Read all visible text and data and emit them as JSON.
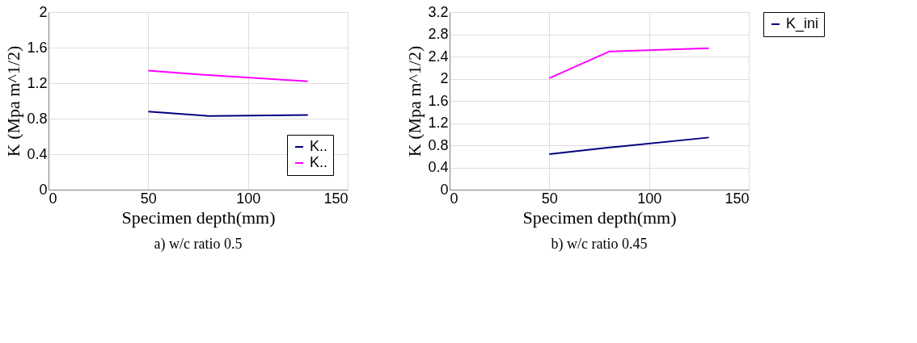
{
  "chart_data": [
    {
      "type": "line",
      "xlabel": "Specimen depth(mm)",
      "ylabel": "K (Mpa m^1/2)",
      "annotations": [
        "a)  w/c ratio 0.5"
      ],
      "xlim": [
        0,
        150
      ],
      "xticks": [
        0,
        50,
        100,
        150
      ],
      "ylim": [
        0,
        2
      ],
      "yticks": [
        0,
        0.4,
        0.8,
        1.2,
        1.6,
        2
      ],
      "grid": true,
      "legend": "bottom right",
      "marker": "none",
      "line_style": "solid",
      "series": [
        {
          "name": "K..",
          "color": "#000080",
          "x": [
            50,
            80,
            130
          ],
          "values": [
            0.88,
            0.83,
            0.84
          ]
        },
        {
          "name": "K..",
          "color": "#ff00ff",
          "x": [
            50,
            80,
            130
          ],
          "values": [
            1.34,
            1.29,
            1.22
          ]
        }
      ]
    },
    {
      "type": "line",
      "xlabel": "Specimen depth(mm)",
      "ylabel": "K (Mpa m^1/2)",
      "annotations": [
        "b)  w/c ratio 0.45"
      ],
      "xlim": [
        0,
        150
      ],
      "xticks": [
        0,
        50,
        100,
        150
      ],
      "ylim": [
        0,
        3.2
      ],
      "yticks": [
        0,
        0.4,
        0.8,
        1.2,
        1.6,
        2,
        2.4,
        2.8,
        3.2
      ],
      "grid": true,
      "legend": "right",
      "marker": "none",
      "line_style": "solid",
      "series": [
        {
          "name": "K_ini",
          "color": "#000080",
          "x": [
            50,
            80,
            130
          ],
          "values": [
            0.64,
            0.76,
            0.94
          ]
        },
        {
          "color": "#ff00ff",
          "x": [
            50,
            80,
            130
          ],
          "values": [
            2.01,
            2.49,
            2.55
          ]
        }
      ]
    }
  ]
}
